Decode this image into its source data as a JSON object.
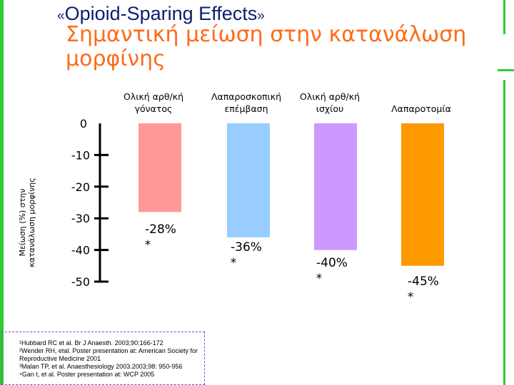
{
  "title": {
    "open_quote": "«",
    "english": "Opioid-Sparing Effects",
    "close_quote": "»",
    "greek_line1": "Σημαντική μείωση στην κατανάλωση",
    "greek_line2": "μορφίνης"
  },
  "chart_data": {
    "type": "bar",
    "categories": [
      [
        "Ολική αρθ/κή",
        "γόνατος"
      ],
      [
        "Λαπαροσκοπική",
        "επέμβαση"
      ],
      [
        "Ολική αρθ/κή",
        "ισχίου"
      ],
      [
        "Λαπαροτομία"
      ]
    ],
    "values": [
      -28,
      -36,
      -40,
      -45
    ],
    "value_labels": [
      "-28%",
      "-36%",
      "-40%",
      "-45%"
    ],
    "significance": [
      "*",
      "*",
      "*",
      "*"
    ],
    "colors": [
      "#ff9999",
      "#99ccff",
      "#cc99ff",
      "#ff9900"
    ],
    "ylabel": [
      "Μείωση (%) στην",
      "κατανάλωση μορφίνης"
    ],
    "yticks": [
      0,
      -10,
      -20,
      -30,
      -40,
      -50
    ],
    "ylim": [
      -50,
      0
    ]
  },
  "footnotes": [
    "¹Hubbard RC et al. Br J Anaesth. 2003;90:166-172",
    "²Wender RH, etal. Poster presentation at: American Society for Reproductive Medicine 2001",
    "³Malan TP, et al. Anaesthesiology 2003.2003;98: 950-956",
    "⁴Gan t, et al. Poster presentation at: WCP 2005"
  ]
}
